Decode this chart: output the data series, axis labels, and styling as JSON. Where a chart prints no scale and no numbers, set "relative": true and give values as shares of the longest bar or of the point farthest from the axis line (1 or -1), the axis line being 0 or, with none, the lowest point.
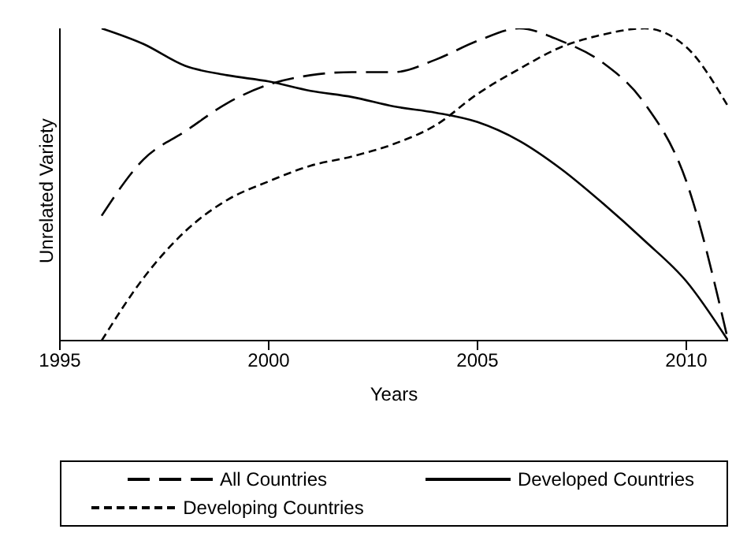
{
  "chart_data": {
    "type": "line",
    "xlabel": "Years",
    "ylabel": "Unrelated Variety",
    "relative": true,
    "x": [
      1996,
      1997,
      1998,
      1999,
      2000,
      2001,
      2002,
      2003,
      2004,
      2005,
      2006,
      2007,
      2008,
      2009,
      2010,
      2011
    ],
    "xlim": [
      1995,
      2011
    ],
    "xticks": [
      1995,
      2000,
      2005,
      2010
    ],
    "series": [
      {
        "name": "All Countries",
        "color": "#000000",
        "line_style": "longdash",
        "values": [
          0.4,
          0.58,
          0.67,
          0.76,
          0.82,
          0.85,
          0.86,
          0.86,
          0.9,
          0.96,
          1.0,
          0.96,
          0.89,
          0.76,
          0.51,
          0
        ]
      },
      {
        "name": "Developed Countries",
        "color": "#000000",
        "line_style": "solid",
        "values": [
          1.0,
          0.95,
          0.88,
          0.85,
          0.83,
          0.8,
          0.78,
          0.75,
          0.73,
          0.7,
          0.64,
          0.55,
          0.44,
          0.32,
          0.19,
          0
        ]
      },
      {
        "name": "Developing Countries",
        "color": "#000000",
        "line_style": "dashed",
        "values": [
          0,
          0.2,
          0.35,
          0.45,
          0.51,
          0.56,
          0.59,
          0.63,
          0.69,
          0.79,
          0.87,
          0.94,
          0.98,
          1.0,
          0.94,
          0.75
        ]
      }
    ],
    "grid": false,
    "legend": "bottom",
    "marker": "none"
  }
}
